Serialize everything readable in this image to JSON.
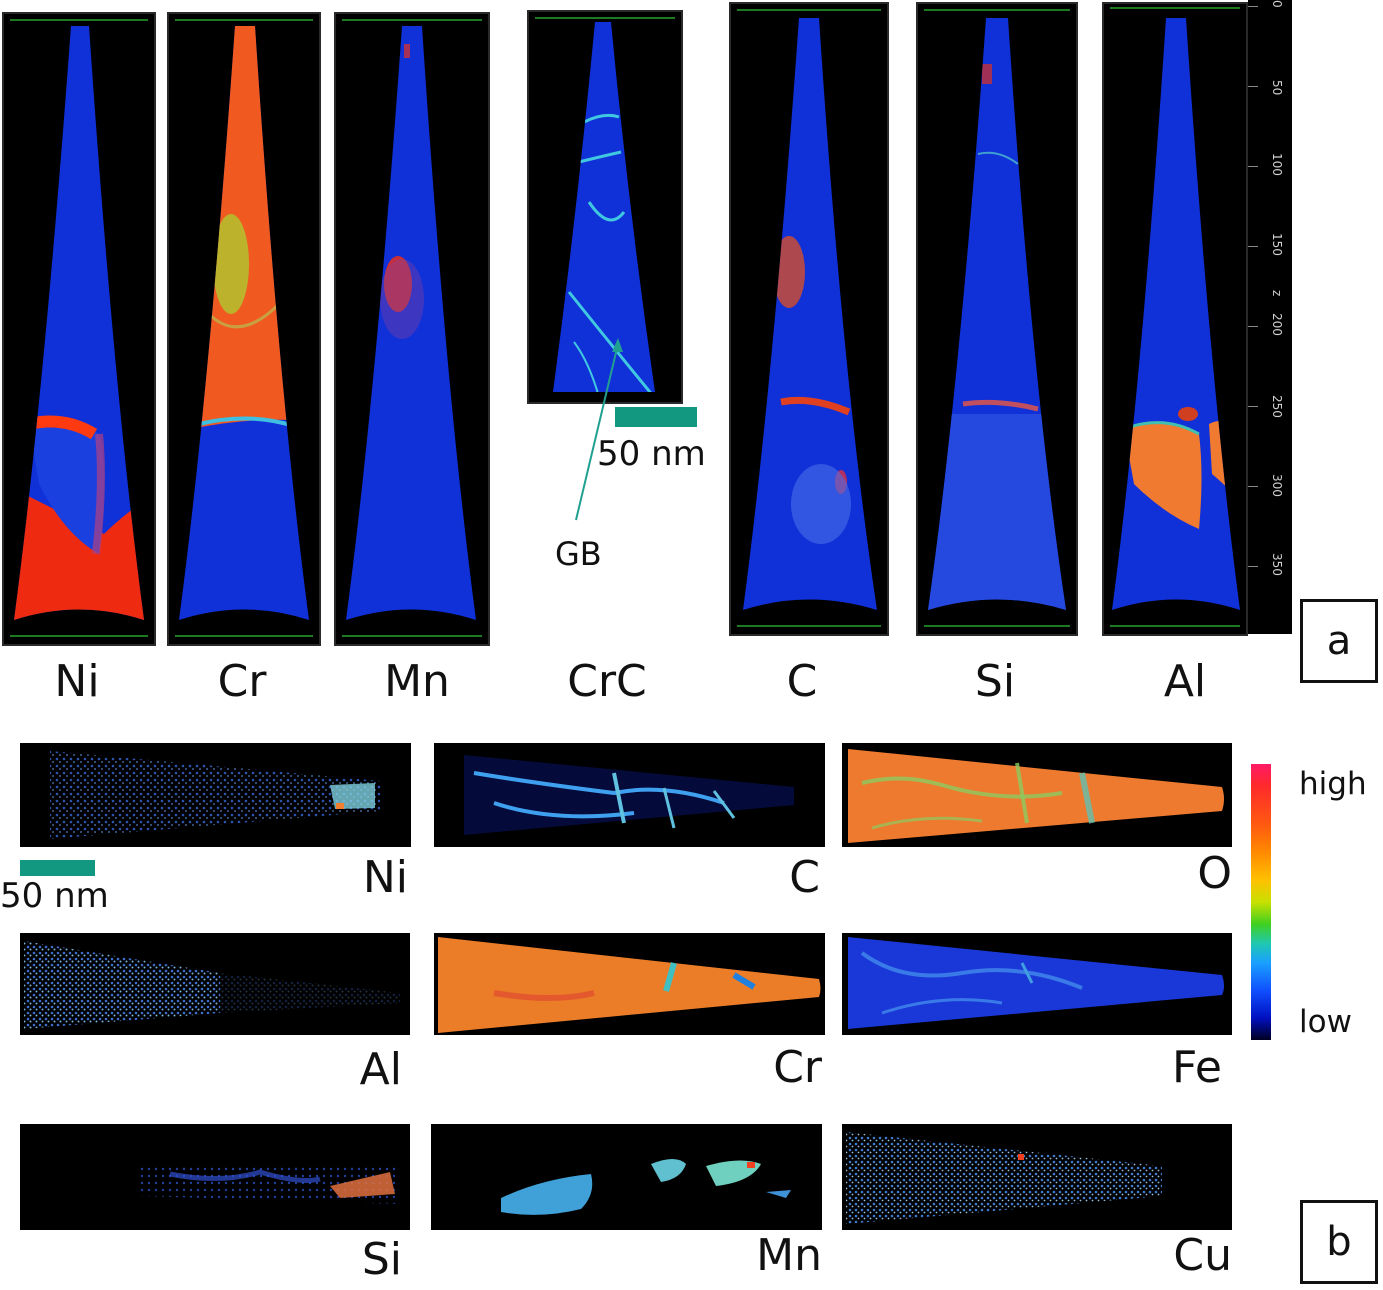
{
  "panel_a": {
    "tips": [
      {
        "label": "Ni"
      },
      {
        "label": "Cr"
      },
      {
        "label": "Mn"
      },
      {
        "label": "CrC"
      },
      {
        "label": "C"
      },
      {
        "label": "Si"
      },
      {
        "label": "Al"
      }
    ],
    "z_axis": {
      "label": "z",
      "ticks": [
        "0",
        "50",
        "100",
        "150",
        "200",
        "250",
        "300",
        "350"
      ]
    },
    "scale_bar": "50 nm",
    "annotation": "GB",
    "panel_tag": "a"
  },
  "panel_b": {
    "maps": [
      {
        "label": "Ni"
      },
      {
        "label": "C"
      },
      {
        "label": "O"
      },
      {
        "label": "Al"
      },
      {
        "label": "Cr"
      },
      {
        "label": "Fe"
      },
      {
        "label": "Si"
      },
      {
        "label": "Mn"
      },
      {
        "label": "Cu"
      }
    ],
    "scale_bar": "50 nm",
    "legend": {
      "high": "high",
      "low": "low"
    },
    "panel_tag": "b"
  },
  "colors": {
    "low": "#1030d8",
    "high": "#ff3010",
    "mid": "#f08030",
    "scale_bar": "#129880"
  }
}
